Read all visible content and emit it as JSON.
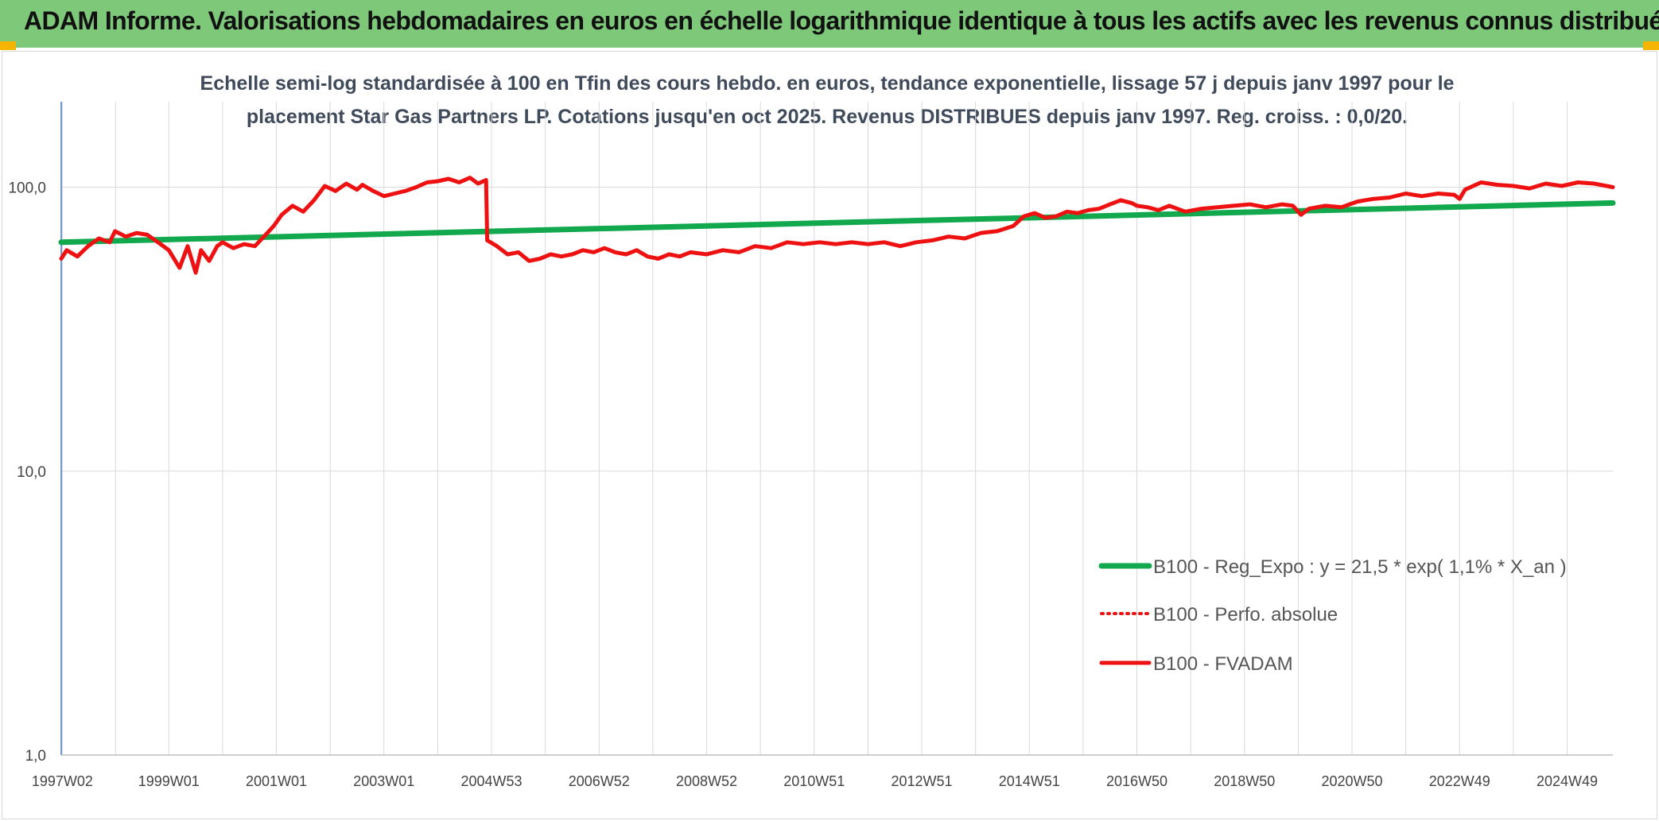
{
  "header": {
    "title": "ADAM Informe. Valorisations hebdomadaires en euros en échelle logarithmique identique à tous les actifs avec les revenus connus distribués"
  },
  "colors": {
    "header_bg": "#7ec87a",
    "regression": "#12a84e",
    "series_red": "#ee1111",
    "grid": "#d9d9d9"
  },
  "chart_data": {
    "type": "line",
    "title_line1": "Echelle semi-log standardisée à 100 en Tfin des cours hebdo. en euros, tendance exponentielle, lissage 57 j depuis janv 1997 pour le",
    "title_line2": "placement Star Gas Partners LP. Cotations jusqu'en oct 2025. Revenus DISTRIBUES depuis janv 1997. Reg. croiss. : 0,0/20.",
    "y_scale": "log",
    "ylim": [
      1,
      200
    ],
    "y_ticks": [
      1,
      10,
      100
    ],
    "y_tick_labels": [
      "1,0",
      "10,0",
      "100,0"
    ],
    "xlim": [
      1997.0,
      2025.85
    ],
    "x_tick_labels": [
      "1997W02",
      "1999W01",
      "2001W01",
      "2003W01",
      "2004W53",
      "2006W52",
      "2008W52",
      "2010W51",
      "2012W51",
      "2014W51",
      "2016W50",
      "2018W50",
      "2020W50",
      "2022W49",
      "2024W49"
    ],
    "x_tick_positions": [
      1997.02,
      1999.0,
      2001.0,
      2003.0,
      2005.0,
      2007.0,
      2009.0,
      2011.0,
      2013.0,
      2015.0,
      2017.0,
      2019.0,
      2021.0,
      2023.0,
      2025.0
    ],
    "grid": true,
    "legend_position": "lower-right",
    "series": [
      {
        "name": "B100 - Reg_Expo : y = 21,5 * exp( 1,1% *  X_an )",
        "style": "solid-green",
        "x": [
          1997.0,
          2025.85
        ],
        "values": [
          64,
          88
        ]
      },
      {
        "name": "B100 - Perfo. absolue",
        "style": "dotted-red",
        "x": [],
        "values": []
      },
      {
        "name": "B100 - FVADAM",
        "style": "solid-red",
        "x": [
          1997.0,
          1997.1,
          1997.3,
          1997.5,
          1997.7,
          1997.9,
          1998.0,
          1998.2,
          1998.4,
          1998.6,
          1998.8,
          1999.0,
          1999.2,
          1999.35,
          1999.5,
          1999.6,
          1999.75,
          1999.9,
          2000.0,
          2000.2,
          2000.4,
          2000.6,
          2000.8,
          2000.95,
          2001.1,
          2001.3,
          2001.5,
          2001.7,
          2001.9,
          2002.1,
          2002.3,
          2002.5,
          2002.6,
          2002.8,
          2003.0,
          2003.2,
          2003.4,
          2003.6,
          2003.8,
          2004.0,
          2004.2,
          2004.4,
          2004.6,
          2004.75,
          2004.9,
          2004.92,
          2005.1,
          2005.3,
          2005.5,
          2005.7,
          2005.9,
          2006.1,
          2006.3,
          2006.5,
          2006.7,
          2006.9,
          2007.1,
          2007.3,
          2007.5,
          2007.7,
          2007.9,
          2008.1,
          2008.3,
          2008.5,
          2008.7,
          2009.0,
          2009.3,
          2009.6,
          2009.9,
          2010.2,
          2010.5,
          2010.8,
          2011.1,
          2011.4,
          2011.7,
          2012.0,
          2012.3,
          2012.6,
          2012.9,
          2013.2,
          2013.5,
          2013.8,
          2014.1,
          2014.4,
          2014.7,
          2014.9,
          2015.1,
          2015.3,
          2015.5,
          2015.7,
          2015.9,
          2016.1,
          2016.3,
          2016.5,
          2016.7,
          2016.9,
          2017.0,
          2017.2,
          2017.4,
          2017.6,
          2017.9,
          2018.2,
          2018.5,
          2018.8,
          2019.1,
          2019.4,
          2019.7,
          2019.9,
          2020.05,
          2020.2,
          2020.5,
          2020.8,
          2021.1,
          2021.4,
          2021.7,
          2022.0,
          2022.3,
          2022.6,
          2022.9,
          2023.0,
          2023.1,
          2023.4,
          2023.7,
          2024.0,
          2024.3,
          2024.6,
          2024.9,
          2025.2,
          2025.5,
          2025.85
        ],
        "values": [
          56,
          60,
          57,
          62,
          66,
          64,
          70,
          67,
          69,
          68,
          64,
          60,
          52,
          62,
          50,
          60,
          55,
          62,
          64,
          61,
          63,
          62,
          68,
          73,
          80,
          86,
          82,
          90,
          101,
          97,
          103,
          98,
          102,
          97,
          93,
          95,
          97,
          100,
          104,
          105,
          107,
          104,
          108,
          103,
          106,
          65,
          62,
          58,
          59,
          55,
          56,
          58,
          57,
          58,
          60,
          59,
          61,
          59,
          58,
          60,
          57,
          56,
          58,
          57,
          59,
          58,
          60,
          59,
          62,
          61,
          64,
          63,
          64,
          63,
          64,
          63,
          64,
          62,
          64,
          65,
          67,
          66,
          69,
          70,
          73,
          79,
          81,
          78,
          79,
          82,
          81,
          83,
          84,
          87,
          90,
          88,
          86,
          85,
          83,
          86,
          82,
          84,
          85,
          86,
          87,
          85,
          87,
          86,
          80,
          84,
          86,
          85,
          89,
          91,
          92,
          95,
          93,
          95,
          94,
          91,
          98,
          104,
          102,
          101,
          99,
          103,
          101,
          104,
          103,
          100
        ]
      }
    ]
  }
}
